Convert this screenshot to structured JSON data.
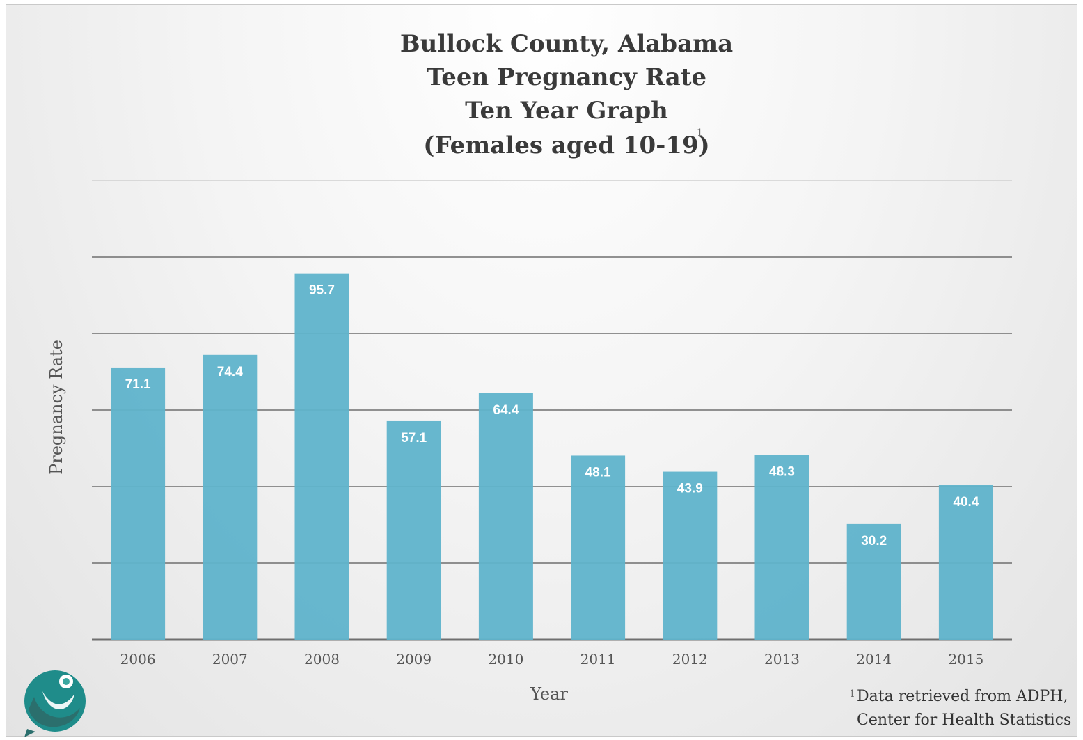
{
  "chart_data": {
    "type": "bar",
    "title": [
      "Bullock County, Alabama",
      "Teen Pregnancy Rate",
      "Ten Year Graph",
      "(Females aged 10-19)"
    ],
    "title_footnote_marker": "1",
    "xlabel": "Year",
    "ylabel": "Pregnancy Rate",
    "categories": [
      "2006",
      "2007",
      "2008",
      "2009",
      "2010",
      "2011",
      "2012",
      "2013",
      "2014",
      "2015"
    ],
    "values": [
      71.1,
      74.4,
      95.7,
      57.1,
      64.4,
      48.1,
      43.9,
      48.3,
      30.2,
      40.4
    ],
    "data_labels": [
      "71.1",
      "74.4",
      "95.7",
      "57.1",
      "64.4",
      "48.1",
      "43.9",
      "48.3",
      "30.2",
      "40.4"
    ],
    "ylim": [
      0,
      120
    ],
    "ytick_step": 20,
    "grid": true,
    "bar_color": "#5fb3cb",
    "gridline_color": "#6f6f6f"
  },
  "footnote": {
    "marker": "1",
    "lines": [
      "Data retrieved from ADPH,",
      "Center for Health Statistics"
    ]
  },
  "logo": {
    "icon": "person-figure-logo-icon",
    "colors": [
      "#1e8b8b",
      "#2a6a6a",
      "#3aa7a0"
    ]
  }
}
